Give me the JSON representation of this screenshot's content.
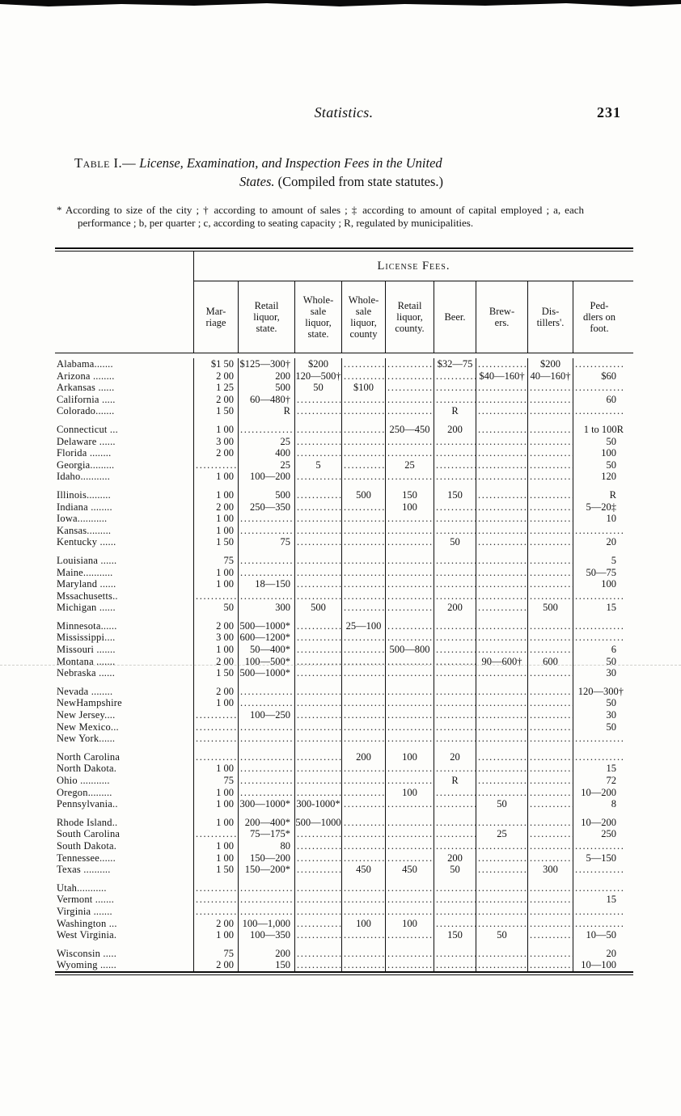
{
  "page": {
    "running_head": "Statistics.",
    "page_number": "231",
    "title": {
      "label": "Table I.—",
      "line1_italic": " License, Examination, and Inspection Fees in the United",
      "line2_italic": "States.",
      "line2_plain": "  (Compiled from state statutes.)"
    },
    "footnote": "* According to size of the city ;  † according  to  amount of sales ; ‡ according to  amount of capital employed ; a, each  performance ;  b,  per  quarter ;  c,  according  to  seating capacity ; R, regulated by municipalities."
  },
  "table": {
    "spanner": "License Fees.",
    "columns": [
      "Mar-\nriage",
      "Retail\nliquor,\nstate.",
      "Whole-\nsale\nliquor,\nstate.",
      "Whole-\nsale\nliquor,\ncounty",
      "Retail\nliquor,\ncounty.",
      "Beer.",
      "Brew-\ners.",
      "Dis-\ntillers'.",
      "Ped-\ndlers on\nfoot."
    ],
    "rows": [
      {
        "state": "Alabama.......",
        "cells": [
          "$1 50",
          "$125—300†",
          "$200",
          "",
          "",
          "$32—75",
          "",
          "$200",
          ""
        ]
      },
      {
        "state": "Arizona ........",
        "cells": [
          "2 00",
          "200",
          "120—500†",
          "",
          "",
          "",
          "$40—160†",
          "40—160†",
          "$60"
        ]
      },
      {
        "state": "Arkansas ......",
        "cells": [
          "1 25",
          "500",
          "50",
          "$100",
          "",
          "",
          "",
          "",
          ""
        ]
      },
      {
        "state": "California .....",
        "cells": [
          "2 00",
          "60—480†",
          "",
          "",
          "",
          "",
          "",
          "",
          "60"
        ]
      },
      {
        "state": "Colorado.......",
        "cells": [
          "1 50",
          "R",
          "",
          "",
          "",
          "R",
          "",
          "",
          ""
        ]
      },
      {
        "state": "Connecticut ...",
        "cells": [
          "1 00",
          "",
          "",
          "",
          "250—450",
          "200",
          "",
          "",
          "1 to 100R"
        ]
      },
      {
        "state": "Delaware ......",
        "cells": [
          "3 00",
          "25",
          "",
          "",
          "",
          "",
          "",
          "",
          "50"
        ]
      },
      {
        "state": "Florida ........",
        "cells": [
          "2 00",
          "400",
          "",
          "",
          "",
          "",
          "",
          "",
          "100"
        ]
      },
      {
        "state": "Georgia.........",
        "cells": [
          "",
          "25",
          "5",
          "",
          "25",
          "",
          "",
          "",
          "50"
        ]
      },
      {
        "state": "Idaho...........",
        "cells": [
          "1 00",
          "100—200",
          "",
          "",
          "",
          "",
          "",
          "",
          "120"
        ]
      },
      {
        "state": "Illinois.........",
        "cells": [
          "1 00",
          "500",
          "",
          "500",
          "150",
          "150",
          "",
          "",
          "R"
        ]
      },
      {
        "state": "Indiana ........",
        "cells": [
          "2 00",
          "250—350",
          "",
          "",
          "100",
          "",
          "",
          "",
          "5—20‡"
        ]
      },
      {
        "state": "Iowa...........",
        "cells": [
          "1 00",
          "",
          "",
          "",
          "",
          "",
          "",
          "",
          "10"
        ]
      },
      {
        "state": "Kansas.........",
        "cells": [
          "1 00",
          "",
          "",
          "",
          "",
          "",
          "",
          "",
          ""
        ]
      },
      {
        "state": "Kentucky ......",
        "cells": [
          "1 50",
          "75",
          "",
          "",
          "",
          "50",
          "",
          "",
          "20"
        ]
      },
      {
        "state": "Louisiana ......",
        "cells": [
          "75",
          "",
          "",
          "",
          "",
          "",
          "",
          "",
          "5"
        ]
      },
      {
        "state": "Maine...........",
        "cells": [
          "1 00",
          "",
          "",
          "",
          "",
          "",
          "",
          "",
          "50—75"
        ]
      },
      {
        "state": "Maryland ......",
        "cells": [
          "1 00",
          "18—150",
          "",
          "",
          "",
          "",
          "",
          "",
          "100"
        ]
      },
      {
        "state": "Mssachusetts..",
        "cells": [
          "",
          "",
          "",
          "",
          "",
          "",
          "",
          "",
          ""
        ]
      },
      {
        "state": "Michigan ......",
        "cells": [
          "50",
          "300",
          "500",
          "",
          "",
          "200",
          "",
          "500",
          "15"
        ]
      },
      {
        "state": "Minnesota......",
        "cells": [
          "2 00",
          "500—1000*",
          "",
          "25—100",
          "",
          "",
          "",
          "",
          ""
        ]
      },
      {
        "state": "Mississippi....",
        "cells": [
          "3 00",
          "600—1200*",
          "",
          "",
          "",
          "",
          "",
          "",
          ""
        ]
      },
      {
        "state": "Missouri .......",
        "cells": [
          "1 00",
          "50—400*",
          "",
          "",
          "500—800",
          "",
          "",
          "",
          "6"
        ]
      },
      {
        "state": "Montana .......",
        "cells": [
          "2 00",
          "100—500*",
          "",
          "",
          "",
          "",
          "90—600†",
          "600",
          "50"
        ]
      },
      {
        "state": "Nebraska ......",
        "cells": [
          "1 50",
          "500—1000*",
          "",
          "",
          "",
          "",
          "",
          "",
          "30"
        ]
      },
      {
        "state": "Nevada ........",
        "cells": [
          "2 00",
          "",
          "",
          "",
          "",
          "",
          "",
          "",
          "120—300†"
        ]
      },
      {
        "state": "NewHampshire",
        "cells": [
          "1 00",
          "",
          "",
          "",
          "",
          "",
          "",
          "",
          "50"
        ]
      },
      {
        "state": "New Jersey....",
        "cells": [
          "",
          "100—250",
          "",
          "",
          "",
          "",
          "",
          "",
          "30"
        ]
      },
      {
        "state": "New Mexico...",
        "cells": [
          "",
          "",
          "",
          "",
          "",
          "",
          "",
          "",
          "50"
        ]
      },
      {
        "state": "New York......",
        "cells": [
          "",
          "",
          "",
          "",
          "",
          "",
          "",
          "",
          ""
        ]
      },
      {
        "state": "North Carolina",
        "cells": [
          "",
          "",
          "",
          "200",
          "100",
          "20",
          "",
          "",
          ""
        ]
      },
      {
        "state": "North Dakota.",
        "cells": [
          "1 00",
          "",
          "",
          "",
          "",
          "",
          "",
          "",
          "15"
        ]
      },
      {
        "state": "Ohio ...........",
        "cells": [
          "75",
          "",
          "",
          "",
          "",
          "R",
          "",
          "",
          "72"
        ]
      },
      {
        "state": "Oregon.........",
        "cells": [
          "1 00",
          "",
          "",
          "",
          "100",
          "",
          "",
          "",
          "10—200"
        ]
      },
      {
        "state": "Pennsylvania..",
        "cells": [
          "1 00",
          "300—1000*",
          "300-1000*",
          "",
          "",
          "",
          "50",
          "",
          "8"
        ]
      },
      {
        "state": "Rhode Island..",
        "cells": [
          "1 00",
          "200—400*",
          "500—1000",
          "",
          "",
          "",
          "",
          "",
          "10—200"
        ]
      },
      {
        "state": "South Carolina",
        "cells": [
          "",
          "75—175*",
          "",
          "",
          "",
          "",
          "25",
          "",
          "250"
        ]
      },
      {
        "state": "South Dakota.",
        "cells": [
          "1 00",
          "80",
          "",
          "",
          "",
          "",
          "",
          "",
          ""
        ]
      },
      {
        "state": "Tennessee......",
        "cells": [
          "1 00",
          "150—200",
          "",
          "",
          "",
          "200",
          "",
          "",
          "5—150"
        ]
      },
      {
        "state": "Texas ..........",
        "cells": [
          "1 50",
          "150—200*",
          "",
          "450",
          "450",
          "50",
          "",
          "300",
          ""
        ]
      },
      {
        "state": "Utah...........",
        "cells": [
          "",
          "",
          "",
          "",
          "",
          "",
          "",
          "",
          ""
        ]
      },
      {
        "state": "Vermont .......",
        "cells": [
          "",
          "",
          "",
          "",
          "",
          "",
          "",
          "",
          "15"
        ]
      },
      {
        "state": "Virginia .......",
        "cells": [
          "",
          "",
          "",
          "",
          "",
          "",
          "",
          "",
          ""
        ]
      },
      {
        "state": "Washington ...",
        "cells": [
          "2 00",
          "100—1,000",
          "",
          "100",
          "100",
          "",
          "",
          "",
          ""
        ]
      },
      {
        "state": "West Virginia.",
        "cells": [
          "1 00",
          "100—350",
          "",
          "",
          "",
          "150",
          "50",
          "",
          "10—50"
        ]
      },
      {
        "state": "Wisconsin .....",
        "cells": [
          "75",
          "200",
          "",
          "",
          "",
          "",
          "",
          "",
          "20"
        ]
      },
      {
        "state": "Wyoming ......",
        "cells": [
          "2 00",
          "150",
          "",
          "",
          "",
          "",
          "",
          "",
          "10—100"
        ]
      }
    ]
  }
}
